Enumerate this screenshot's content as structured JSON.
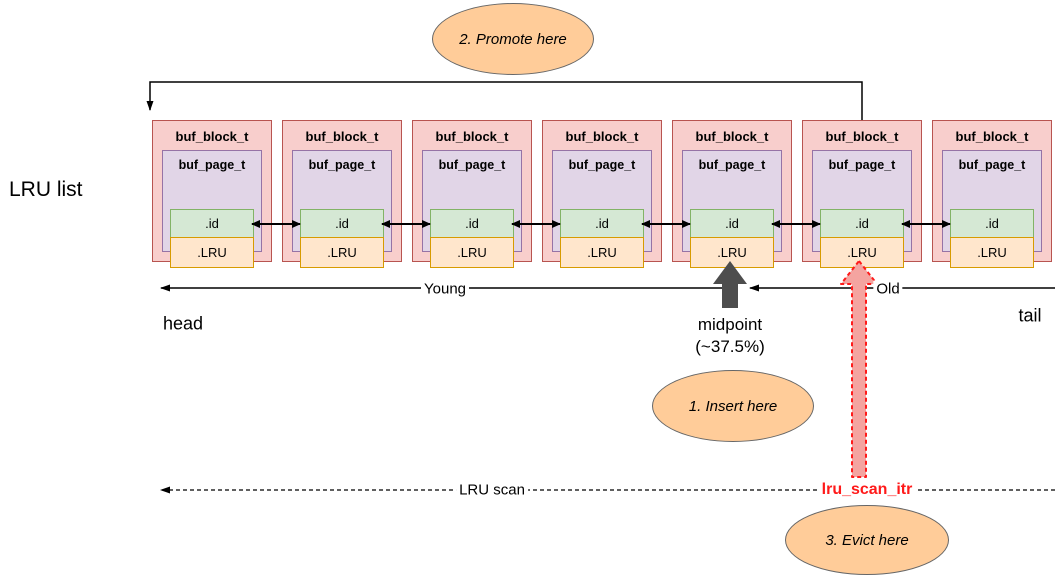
{
  "labels": {
    "lru_list": "LRU list",
    "young": "Young",
    "old": "Old",
    "head": "head",
    "tail": "tail"
  },
  "midpoint": {
    "line1": "midpoint",
    "line2": "(~37.5%)"
  },
  "scan": {
    "label": "LRU scan",
    "iterator": "lru_scan_itr"
  },
  "callouts": {
    "promote": "2. Promote here",
    "insert": "1. Insert here",
    "evict": "3. Evict here"
  },
  "blocks": [
    {
      "title": "buf_block_t",
      "page": "buf_page_t",
      "id": ".id",
      "lru": ".LRU"
    },
    {
      "title": "buf_block_t",
      "page": "buf_page_t",
      "id": ".id",
      "lru": ".LRU"
    },
    {
      "title": "buf_block_t",
      "page": "buf_page_t",
      "id": ".id",
      "lru": ".LRU"
    },
    {
      "title": "buf_block_t",
      "page": "buf_page_t",
      "id": ".id",
      "lru": ".LRU"
    },
    {
      "title": "buf_block_t",
      "page": "buf_page_t",
      "id": ".id",
      "lru": ".LRU"
    },
    {
      "title": "buf_block_t",
      "page": "buf_page_t",
      "id": ".id",
      "lru": ".LRU"
    },
    {
      "title": "buf_block_t",
      "page": "buf_page_t",
      "id": ".id",
      "lru": ".LRU"
    }
  ],
  "colors": {
    "block_fill": "#f8cecc",
    "block_border": "#b85450",
    "page_fill": "#e1d5e7",
    "page_border": "#9673a6",
    "id_fill": "#d5e8d4",
    "id_border": "#82b366",
    "lru_fill": "#ffe6cc",
    "lru_border": "#d79b00",
    "callout_fill": "#ffcc99",
    "callout_border": "#666666",
    "midpoint_arrow": "#4d4d4d",
    "scan_itr_fill": "#f4a4a0",
    "scan_itr_stroke": "#ff1a1a",
    "line": "#000000"
  }
}
